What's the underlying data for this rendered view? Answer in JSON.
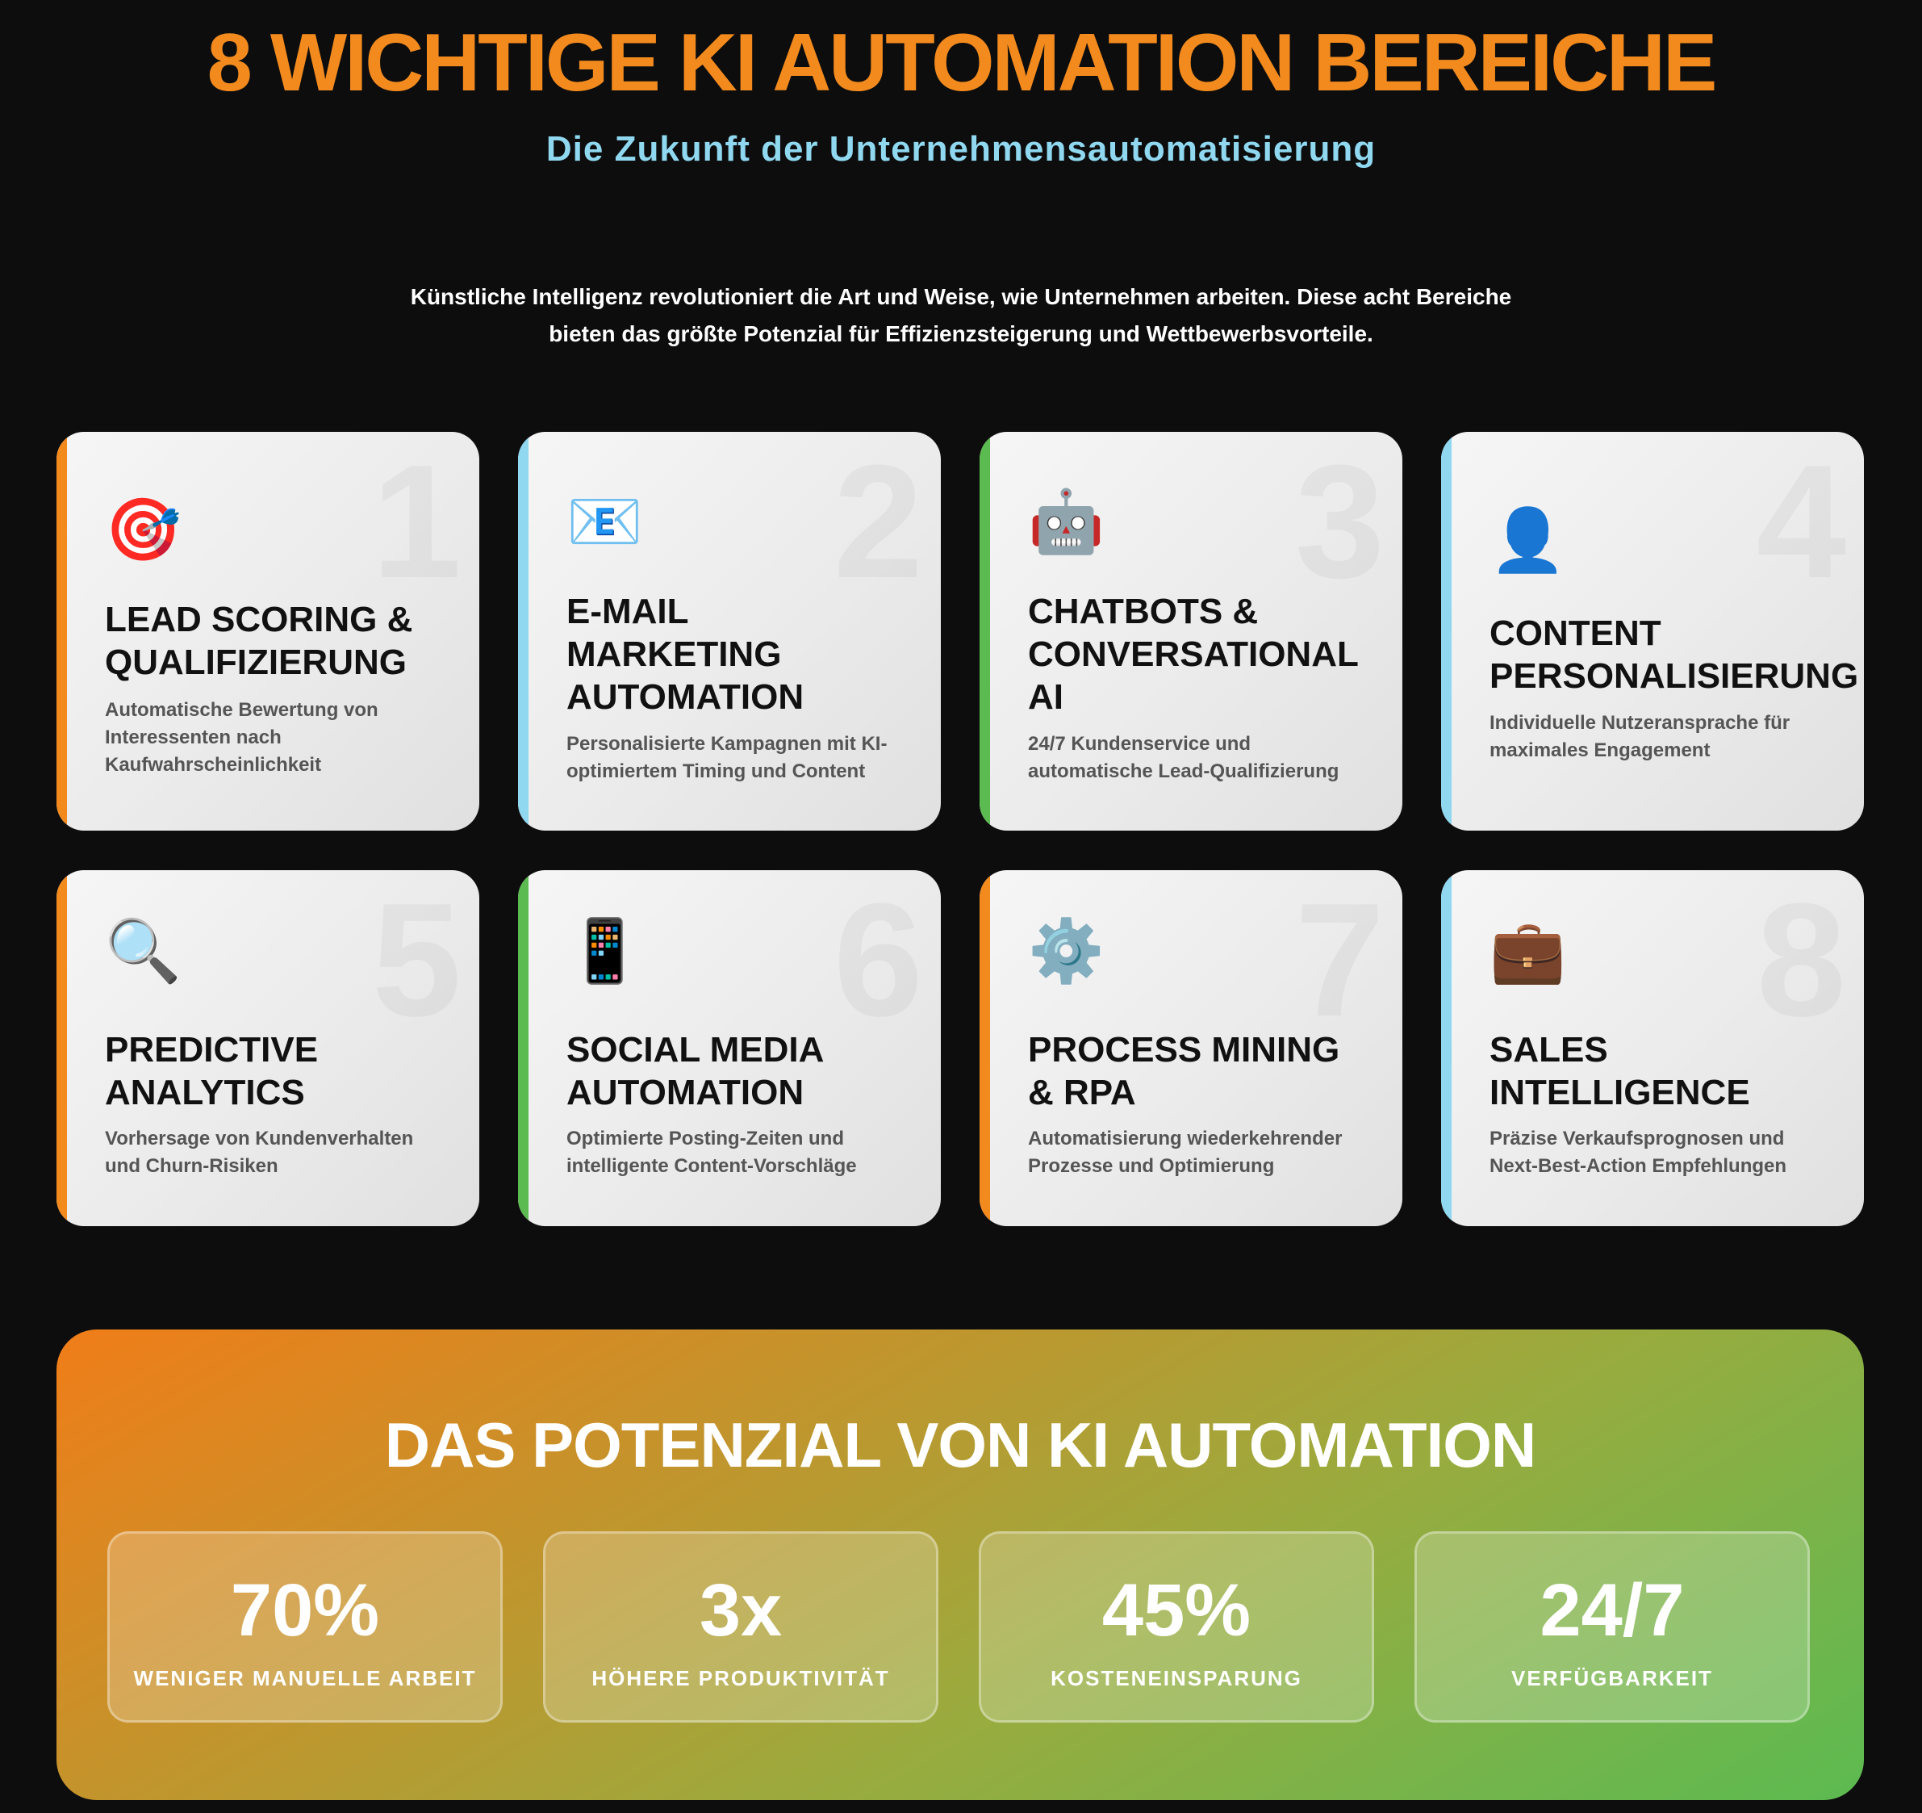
{
  "header": {
    "title": "8 WICHTIGE KI AUTOMATION BEREICHE",
    "subtitle": "Die Zukunft der Unternehmensautomatisierung",
    "intro": "Künstliche Intelligenz revolutioniert die Art und Weise, wie Unternehmen arbeiten. Diese acht Bereiche bieten das größte Potenzial für Effizienzsteigerung und Wettbewerbsvorteile."
  },
  "cards": [
    {
      "number": "1",
      "icon": "🎯",
      "icon_name": "target-icon",
      "title": "LEAD SCORING &\nQUALIFIZIERUNG",
      "desc": "Automatische Bewertung von\nInteressenten nach\nKaufwahrscheinlichkeit",
      "accent": "#f28a1e"
    },
    {
      "number": "2",
      "icon": "📧",
      "icon_name": "email-icon",
      "title": "E-MAIL\nMARKETING\nAUTOMATION",
      "desc": "Personalisierte Kampagnen mit KI-\noptimiertem Timing und Content",
      "accent": "#8fd8f0"
    },
    {
      "number": "3",
      "icon": "🤖",
      "icon_name": "robot-icon",
      "title": "CHATBOTS &\nCONVERSATIONAL\nAI",
      "desc": "24/7 Kundenservice und\nautomatische Lead-Qualifizierung",
      "accent": "#5cbb50"
    },
    {
      "number": "4",
      "icon": "👤",
      "icon_name": "user-silhouette-icon",
      "title": "CONTENT\nPERSONALISIERUNG",
      "desc": "Individuelle Nutzeransprache für\nmaximales Engagement",
      "accent": "#8fd8f0"
    },
    {
      "number": "5",
      "icon": "🔍",
      "icon_name": "magnifier-icon",
      "title": "PREDICTIVE\nANALYTICS",
      "desc": "Vorhersage von Kundenverhalten\nund Churn-Risiken",
      "accent": "#f28a1e"
    },
    {
      "number": "6",
      "icon": "📱",
      "icon_name": "smartphone-icon",
      "title": "SOCIAL MEDIA\nAUTOMATION",
      "desc": "Optimierte Posting-Zeiten und\nintelligente Content-Vorschläge",
      "accent": "#5cbb50"
    },
    {
      "number": "7",
      "icon": "⚙️",
      "icon_name": "gear-icon",
      "title": "PROCESS MINING\n& RPA",
      "desc": "Automatisierung wiederkehrender\nProzesse und Optimierung",
      "accent": "#f28a1e"
    },
    {
      "number": "8",
      "icon": "💼",
      "icon_name": "briefcase-icon",
      "title": "SALES\nINTELLIGENCE",
      "desc": "Präzise Verkaufsprognosen und\nNext-Best-Action Empfehlungen",
      "accent": "#8fd8f0"
    }
  ],
  "potential": {
    "title": "DAS POTENZIAL VON KI AUTOMATION",
    "stats": [
      {
        "value": "70%",
        "label": "WENIGER MANUELLE ARBEIT"
      },
      {
        "value": "3x",
        "label": "HÖHERE PRODUKTIVITÄT"
      },
      {
        "value": "45%",
        "label": "KOSTENEINSPARUNG"
      },
      {
        "value": "24/7",
        "label": "VERFÜGBARKEIT"
      }
    ]
  }
}
